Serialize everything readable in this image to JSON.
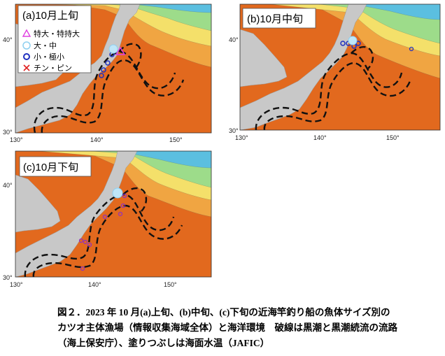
{
  "panels": [
    {
      "id": "a",
      "title": "(a)10月上旬",
      "lat_labels": [
        "40°",
        "30°"
      ],
      "lon_labels": [
        "130°",
        "140°",
        "150°"
      ],
      "legend": [
        {
          "symbol": "triangle",
          "color": "#e040e0",
          "label": "特大・特持大"
        },
        {
          "symbol": "circle-open",
          "color": "#8fd0f0",
          "label": "大・中"
        },
        {
          "symbol": "circle-bold",
          "color": "#2030c0",
          "label": "小・極小"
        },
        {
          "symbol": "cross",
          "color": "#e02020",
          "label": "チン・ピン"
        }
      ]
    },
    {
      "id": "b",
      "title": "(b)10月中旬",
      "lat_labels": [
        "40°",
        "30°"
      ],
      "lon_labels": [
        "130°",
        "140°",
        "150°"
      ]
    },
    {
      "id": "c",
      "title": "(c)10月下旬",
      "lat_labels": [
        "40°",
        "30°"
      ],
      "lon_labels": [
        "130°",
        "140°",
        "150°"
      ]
    }
  ],
  "colors": {
    "warm": "#e2691e",
    "mid": "#f0a542",
    "cool": "#f4e06a",
    "green": "#9ddc8a",
    "cold": "#5bbfe0",
    "land": "#c8c8c8",
    "current": "#111111"
  },
  "caption": {
    "line1": "図２．2023 年 10 月(a)上旬、(b)中旬、(c)下旬の近海竿釣り船の魚体サイズ別の",
    "line2": "カツオ主体漁場（情報収集海域全体）と海洋環境　破線は黒潮と黒潮続流の流路",
    "line3": "（海上保安庁）、塗りつぶしは海面水温（JAFIC）"
  }
}
